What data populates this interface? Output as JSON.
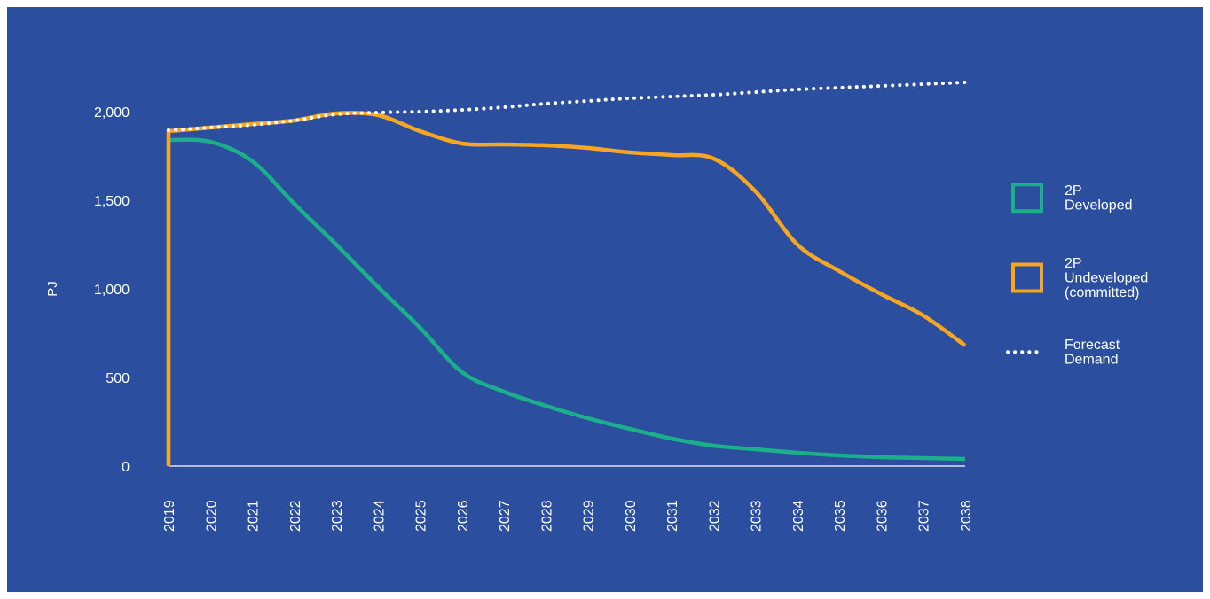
{
  "chart_data": {
    "type": "line",
    "title": "",
    "ylabel": "PJ",
    "xlabel": "",
    "ylim": [
      0,
      2000
    ],
    "yticks": [
      0,
      500,
      1000,
      1500,
      2000
    ],
    "ytick_labels": [
      "0",
      "500",
      "1,000",
      "1,500",
      "2,000"
    ],
    "x": [
      "2019",
      "2020",
      "2021",
      "2022",
      "2023",
      "2024",
      "2025",
      "2026",
      "2027",
      "2028",
      "2029",
      "2030",
      "2031",
      "2032",
      "2033",
      "2034",
      "2035",
      "2036",
      "2037",
      "2038"
    ],
    "legend_position": "right",
    "background_color": "#2b4f9e",
    "series": [
      {
        "key": "developed",
        "name": "2P Developed",
        "legend_lines": [
          "2P",
          "Developed"
        ],
        "color": "#1bb08a",
        "style": "solid",
        "values": [
          1840,
          1830,
          1720,
          1480,
          1250,
          1010,
          780,
          530,
          420,
          340,
          270,
          210,
          155,
          115,
          95,
          75,
          60,
          50,
          45,
          40
        ]
      },
      {
        "key": "undeveloped",
        "name": "2P Undeveloped (committed)",
        "legend_lines": [
          "2P",
          "Undeveloped",
          "(committed)"
        ],
        "color": "#f6a623",
        "style": "solid",
        "values": [
          1890,
          1910,
          1930,
          1950,
          1990,
          1980,
          1890,
          1820,
          1815,
          1810,
          1795,
          1770,
          1755,
          1735,
          1550,
          1250,
          1100,
          970,
          850,
          680
        ]
      },
      {
        "key": "forecast",
        "name": "Forecast Demand",
        "legend_lines": [
          "Forecast",
          "Demand"
        ],
        "color": "#ffffff",
        "style": "dotted",
        "values": [
          1895,
          1910,
          1925,
          1950,
          1985,
          1995,
          2000,
          2010,
          2025,
          2045,
          2060,
          2075,
          2085,
          2095,
          2110,
          2125,
          2135,
          2145,
          2155,
          2165
        ]
      }
    ]
  }
}
